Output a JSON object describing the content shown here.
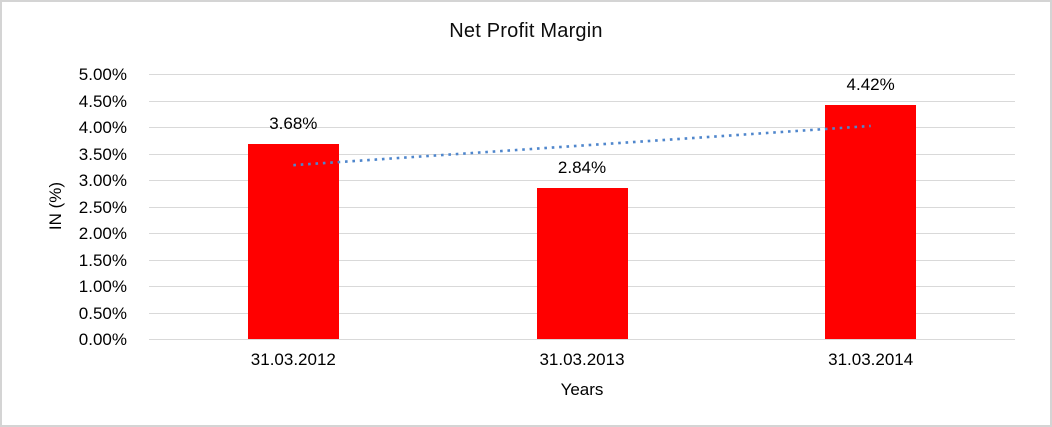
{
  "chart_data": {
    "type": "bar",
    "title": "Net Profit Margin",
    "xlabel": "Years",
    "ylabel": "IN (%)",
    "categories": [
      "31.03.2012",
      "31.03.2013",
      "31.03.2014"
    ],
    "values": [
      3.68,
      2.84,
      4.42
    ],
    "data_labels": [
      "3.68%",
      "2.84%",
      "4.42%"
    ],
    "ytick_labels": [
      "5.00%",
      "4.50%",
      "4.00%",
      "3.50%",
      "3.00%",
      "2.50%",
      "2.00%",
      "1.50%",
      "1.00%",
      "0.50%",
      "0.00%"
    ],
    "ylim": [
      0,
      5
    ],
    "ytick_step": 0.5,
    "grid": true,
    "legend_position": "none",
    "bar_color": "#ff0000",
    "gridline_color": "#d9d9d9",
    "border_color": "#d4d4d4",
    "trendline": {
      "style": "dotted",
      "color": "#4f86cc",
      "start_value": 3.28,
      "end_value": 4.02
    }
  }
}
